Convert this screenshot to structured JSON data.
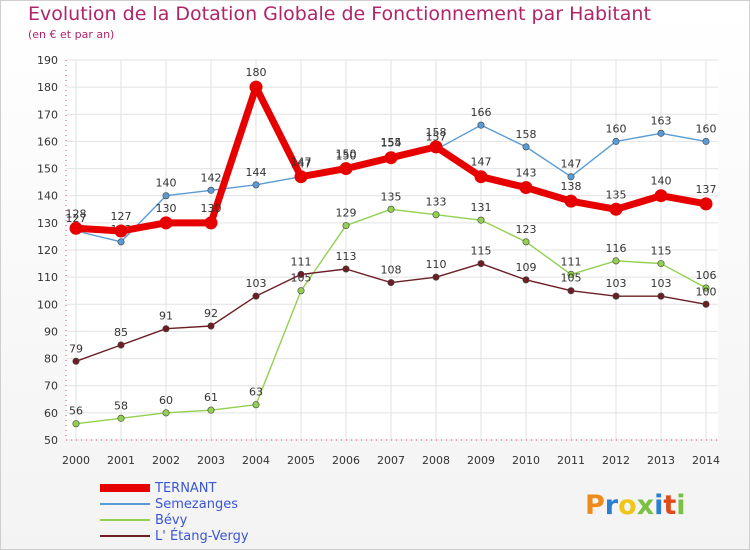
{
  "header": {
    "title": "Evolution de la Dotation Globale de Fonctionnement par Habitant",
    "subtitle": "(en € et par an)"
  },
  "logo": {
    "text": "Proxiti",
    "colors": [
      "#f08a1c",
      "#2a7fd0",
      "#f0c419",
      "#7bc043",
      "#2a7fd0",
      "#e04b1a",
      "#7bc043"
    ]
  },
  "chart_data": {
    "type": "line",
    "title": "Evolution de la Dotation Globale de Fonctionnement par Habitant",
    "subtitle": "(en € et par an)",
    "xlabel": "",
    "ylabel": "",
    "ylim": [
      50,
      190
    ],
    "yticks": [
      50,
      60,
      70,
      80,
      90,
      100,
      110,
      120,
      130,
      140,
      150,
      160,
      170,
      180,
      190
    ],
    "categories": [
      "2000",
      "2001",
      "2002",
      "2003",
      "2004",
      "2005",
      "2006",
      "2007",
      "2008",
      "2009",
      "2010",
      "2011",
      "2012",
      "2013",
      "2014"
    ],
    "grid": true,
    "legend": "bottom-left",
    "series": [
      {
        "name": "TERNANT",
        "color": "#e60000",
        "width": "thick",
        "values": [
          128,
          127,
          130,
          130,
          180,
          147,
          150,
          154,
          158,
          147,
          143,
          138,
          135,
          140,
          137
        ]
      },
      {
        "name": "Semezanges",
        "color": "#5b9bd5",
        "width": "thin",
        "values": [
          127,
          123,
          140,
          142,
          144,
          147,
          150,
          155,
          157,
          166,
          158,
          147,
          160,
          163,
          160
        ]
      },
      {
        "name": "Bévy",
        "color": "#92d050",
        "width": "thin",
        "values": [
          56,
          58,
          60,
          61,
          63,
          105,
          129,
          135,
          133,
          131,
          123,
          111,
          116,
          115,
          106
        ]
      },
      {
        "name": "L' Étang-Vergy",
        "color": "#6b1f24",
        "width": "thin",
        "values": [
          79,
          85,
          91,
          92,
          103,
          111,
          113,
          108,
          110,
          115,
          109,
          105,
          103,
          103,
          100
        ]
      }
    ]
  }
}
